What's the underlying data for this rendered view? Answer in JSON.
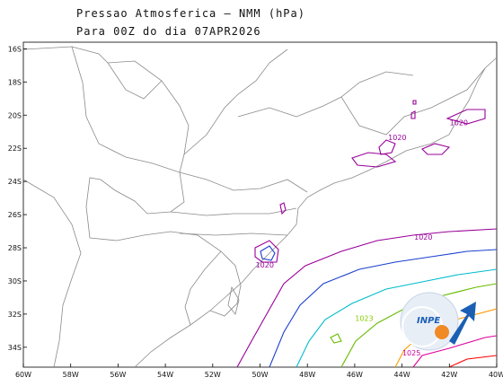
{
  "title": "Pressao Atmosferica — NMM (hPa)",
  "subtitle": "Para 00Z do dia 07APR2026",
  "x_ticks": [
    "60W",
    "58W",
    "56W",
    "54W",
    "52W",
    "50W",
    "48W",
    "46W",
    "44W",
    "42W",
    "40W"
  ],
  "y_ticks": [
    "16S",
    "18S",
    "20S",
    "22S",
    "24S",
    "26S",
    "28S",
    "30S",
    "32S",
    "34S"
  ],
  "contour_labels": [
    {
      "text": "1020",
      "color": "#990099",
      "lon": -41.6,
      "lat": -20.6
    },
    {
      "text": "1020",
      "color": "#990099",
      "lon": -44.2,
      "lat": -21.5
    },
    {
      "text": "1020",
      "color": "#990099",
      "lon": -49.8,
      "lat": -29.2
    },
    {
      "text": "1020",
      "color": "#990099",
      "lon": -43.1,
      "lat": -27.5
    },
    {
      "text": "1023",
      "color": "#88cc00",
      "lon": -45.6,
      "lat": -32.4
    },
    {
      "text": "1025",
      "color": "#cc0099",
      "lon": -43.6,
      "lat": -34.5
    }
  ],
  "logo_text": "INPE"
}
